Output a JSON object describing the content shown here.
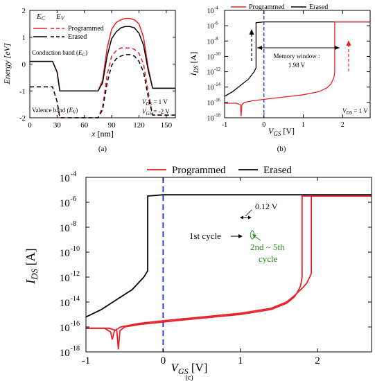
{
  "chart_data": [
    {
      "panel": "(a)",
      "type": "line",
      "xlabel": "x [nm]",
      "ylabel": "Energy [eV]",
      "xlim": [
        0,
        160
      ],
      "ylim": [
        -2,
        2
      ],
      "xticks": [
        "0",
        "30",
        "60",
        "90",
        "120",
        "150"
      ],
      "yticks": [
        "-2",
        "-1",
        "0",
        "1",
        "2"
      ],
      "legend": {
        "position": "top-left",
        "header": [
          "E_C",
          "E_V"
        ],
        "entries": [
          "Programmed",
          "Erased"
        ]
      },
      "annotations": [
        "Conduction band (E_C)",
        "Valence band (E_V)",
        "V_DS = 1 V",
        "V_GS = -2 V"
      ],
      "series": [
        {
          "name": "Programmed",
          "band": "E_C",
          "style": "solid",
          "color": "#e8202a",
          "x": [
            0,
            25,
            30,
            33,
            75,
            80,
            85,
            90,
            95,
            100,
            105,
            110,
            115,
            120,
            125,
            130,
            135,
            160
          ],
          "y": [
            0.1,
            0.1,
            -0.3,
            -1.0,
            -1.0,
            -0.6,
            0.6,
            1.3,
            1.55,
            1.65,
            1.7,
            1.7,
            1.65,
            1.5,
            1.0,
            -0.1,
            -0.9,
            -0.9
          ]
        },
        {
          "name": "Erased",
          "band": "E_C",
          "style": "solid",
          "color": "#000000",
          "x": [
            0,
            25,
            30,
            33,
            75,
            80,
            85,
            90,
            95,
            100,
            105,
            110,
            115,
            120,
            125,
            130,
            135,
            160
          ],
          "y": [
            0.1,
            0.1,
            -0.3,
            -1.0,
            -1.0,
            -0.7,
            0.3,
            0.95,
            1.2,
            1.35,
            1.4,
            1.4,
            1.35,
            1.15,
            0.7,
            -0.2,
            -0.9,
            -0.9
          ]
        },
        {
          "name": "Programmed",
          "band": "E_V",
          "style": "dashed",
          "color": "#e8202a",
          "x": [
            0,
            25,
            30,
            33,
            75,
            80,
            85,
            90,
            95,
            100,
            105,
            110,
            115,
            120,
            125,
            130,
            135,
            160
          ],
          "y": [
            -0.85,
            -0.85,
            -1.4,
            -2.0,
            -2.0,
            -1.6,
            -0.4,
            0.3,
            0.5,
            0.6,
            0.6,
            0.6,
            0.55,
            0.4,
            0.0,
            -1.0,
            -1.9,
            -1.9
          ]
        },
        {
          "name": "Erased",
          "band": "E_V",
          "style": "dashed",
          "color": "#000000",
          "x": [
            0,
            25,
            30,
            33,
            75,
            80,
            85,
            90,
            95,
            100,
            105,
            110,
            115,
            120,
            125,
            130,
            135,
            160
          ],
          "y": [
            -0.85,
            -0.85,
            -1.4,
            -2.0,
            -2.0,
            -1.7,
            -0.7,
            -0.05,
            0.2,
            0.3,
            0.35,
            0.35,
            0.3,
            0.1,
            -0.3,
            -1.2,
            -1.9,
            -1.9
          ]
        }
      ]
    },
    {
      "panel": "(b)",
      "type": "line",
      "xlabel": "V_GS [V]",
      "ylabel": "I_DS [A]",
      "yscale": "log",
      "xlim": [
        -1,
        2.7
      ],
      "ylim_exp": [
        -18,
        -4
      ],
      "xticks": [
        "-1",
        "0",
        "1",
        "2"
      ],
      "yticks": [
        "10^-18",
        "10^-16",
        "10^-14",
        "10^-12",
        "10^-10",
        "10^-8",
        "10^-6",
        "10^-4"
      ],
      "legend": {
        "position": "top",
        "entries": [
          "Programmed",
          "Erased"
        ]
      },
      "annotations": [
        "Memory window :",
        "1.98 V",
        "V_DS = 1 V"
      ],
      "reference_line": {
        "x": 0,
        "color": "#1f2fd8",
        "style": "dashed"
      },
      "series": [
        {
          "name": "Erased",
          "color": "#000000",
          "x": [
            -1,
            -0.8,
            -0.6,
            -0.4,
            -0.25,
            -0.2,
            -0.2,
            0,
            2.7
          ],
          "logy": [
            -15.2,
            -14.6,
            -13.8,
            -13.0,
            -12.0,
            -11.5,
            -5.6,
            -5.5,
            -5.5
          ]
        },
        {
          "name": "Programmed",
          "color": "#e8202a",
          "x": [
            -1,
            -0.7,
            -0.6,
            -0.58,
            -0.56,
            -0.5,
            -0.3,
            0,
            0.5,
            1.0,
            1.4,
            1.6,
            1.7,
            1.75,
            1.78,
            1.8,
            1.8,
            2.0,
            2.7
          ],
          "logy": [
            -16.1,
            -16.1,
            -16.3,
            -17.8,
            -16.3,
            -16.0,
            -15.8,
            -15.6,
            -15.3,
            -15.0,
            -14.6,
            -14.1,
            -13.6,
            -13.1,
            -12.7,
            -12.0,
            -5.5,
            -5.5,
            -5.5
          ]
        }
      ]
    },
    {
      "panel": "(c)",
      "type": "line",
      "xlabel": "V_GS [V]",
      "ylabel": "I_DS [A]",
      "yscale": "log",
      "xlim": [
        -1,
        2.7
      ],
      "ylim_exp": [
        -18,
        -4
      ],
      "xticks": [
        "-1",
        "0",
        "1",
        "2"
      ],
      "yticks": [
        "10^-18",
        "10^-16",
        "10^-14",
        "10^-12",
        "10^-10",
        "10^-8",
        "10^-6",
        "10^-4"
      ],
      "legend": {
        "position": "top",
        "entries": [
          "Programmed",
          "Erased"
        ]
      },
      "annotations": [
        "0.12 V",
        "1st cycle",
        "2nd ~ 5th",
        "cycle"
      ],
      "reference_line": {
        "x": 0,
        "color": "#1f2fd8",
        "style": "dashed"
      },
      "series": [
        {
          "name": "Erased",
          "color": "#000000",
          "x": [
            -1,
            -0.8,
            -0.6,
            -0.4,
            -0.25,
            -0.2,
            -0.2,
            0,
            2.7
          ],
          "logy": [
            -15.2,
            -14.6,
            -13.8,
            -13.0,
            -12.0,
            -11.5,
            -5.5,
            -5.4,
            -5.4
          ]
        },
        {
          "name": "Programmed",
          "cycle": "1st",
          "color": "#e8202a",
          "x": [
            -1,
            -0.7,
            -0.6,
            -0.58,
            -0.56,
            -0.5,
            -0.3,
            0,
            0.5,
            1.0,
            1.4,
            1.6,
            1.7,
            1.75,
            1.78,
            1.8,
            1.8,
            2.0,
            2.7
          ],
          "logy": [
            -16.1,
            -16.1,
            -16.3,
            -17.8,
            -16.3,
            -16.0,
            -15.8,
            -15.6,
            -15.3,
            -15.0,
            -14.6,
            -14.1,
            -13.6,
            -13.1,
            -12.7,
            -12.0,
            -5.5,
            -5.5,
            -5.5
          ]
        },
        {
          "name": "Programmed",
          "cycle": "2nd-5th",
          "color": "#e8202a",
          "x": [
            -1,
            -0.76,
            -0.68,
            -0.66,
            -0.63,
            -0.55,
            -0.3,
            0,
            0.5,
            1.0,
            1.4,
            1.6,
            1.7,
            1.8,
            1.86,
            1.9,
            1.92,
            1.92,
            2.0,
            2.7
          ],
          "logy": [
            -16.1,
            -16.1,
            -16.4,
            -17.0,
            -16.3,
            -16.0,
            -15.7,
            -15.5,
            -15.2,
            -14.9,
            -14.5,
            -14.0,
            -13.5,
            -12.9,
            -12.5,
            -12.0,
            -11.7,
            -5.5,
            -5.5,
            -5.5
          ]
        }
      ]
    }
  ],
  "colors": {
    "programmed": "#e8202a",
    "erased": "#000000",
    "reference": "#1f2fd8",
    "green": "#2a8a22"
  }
}
